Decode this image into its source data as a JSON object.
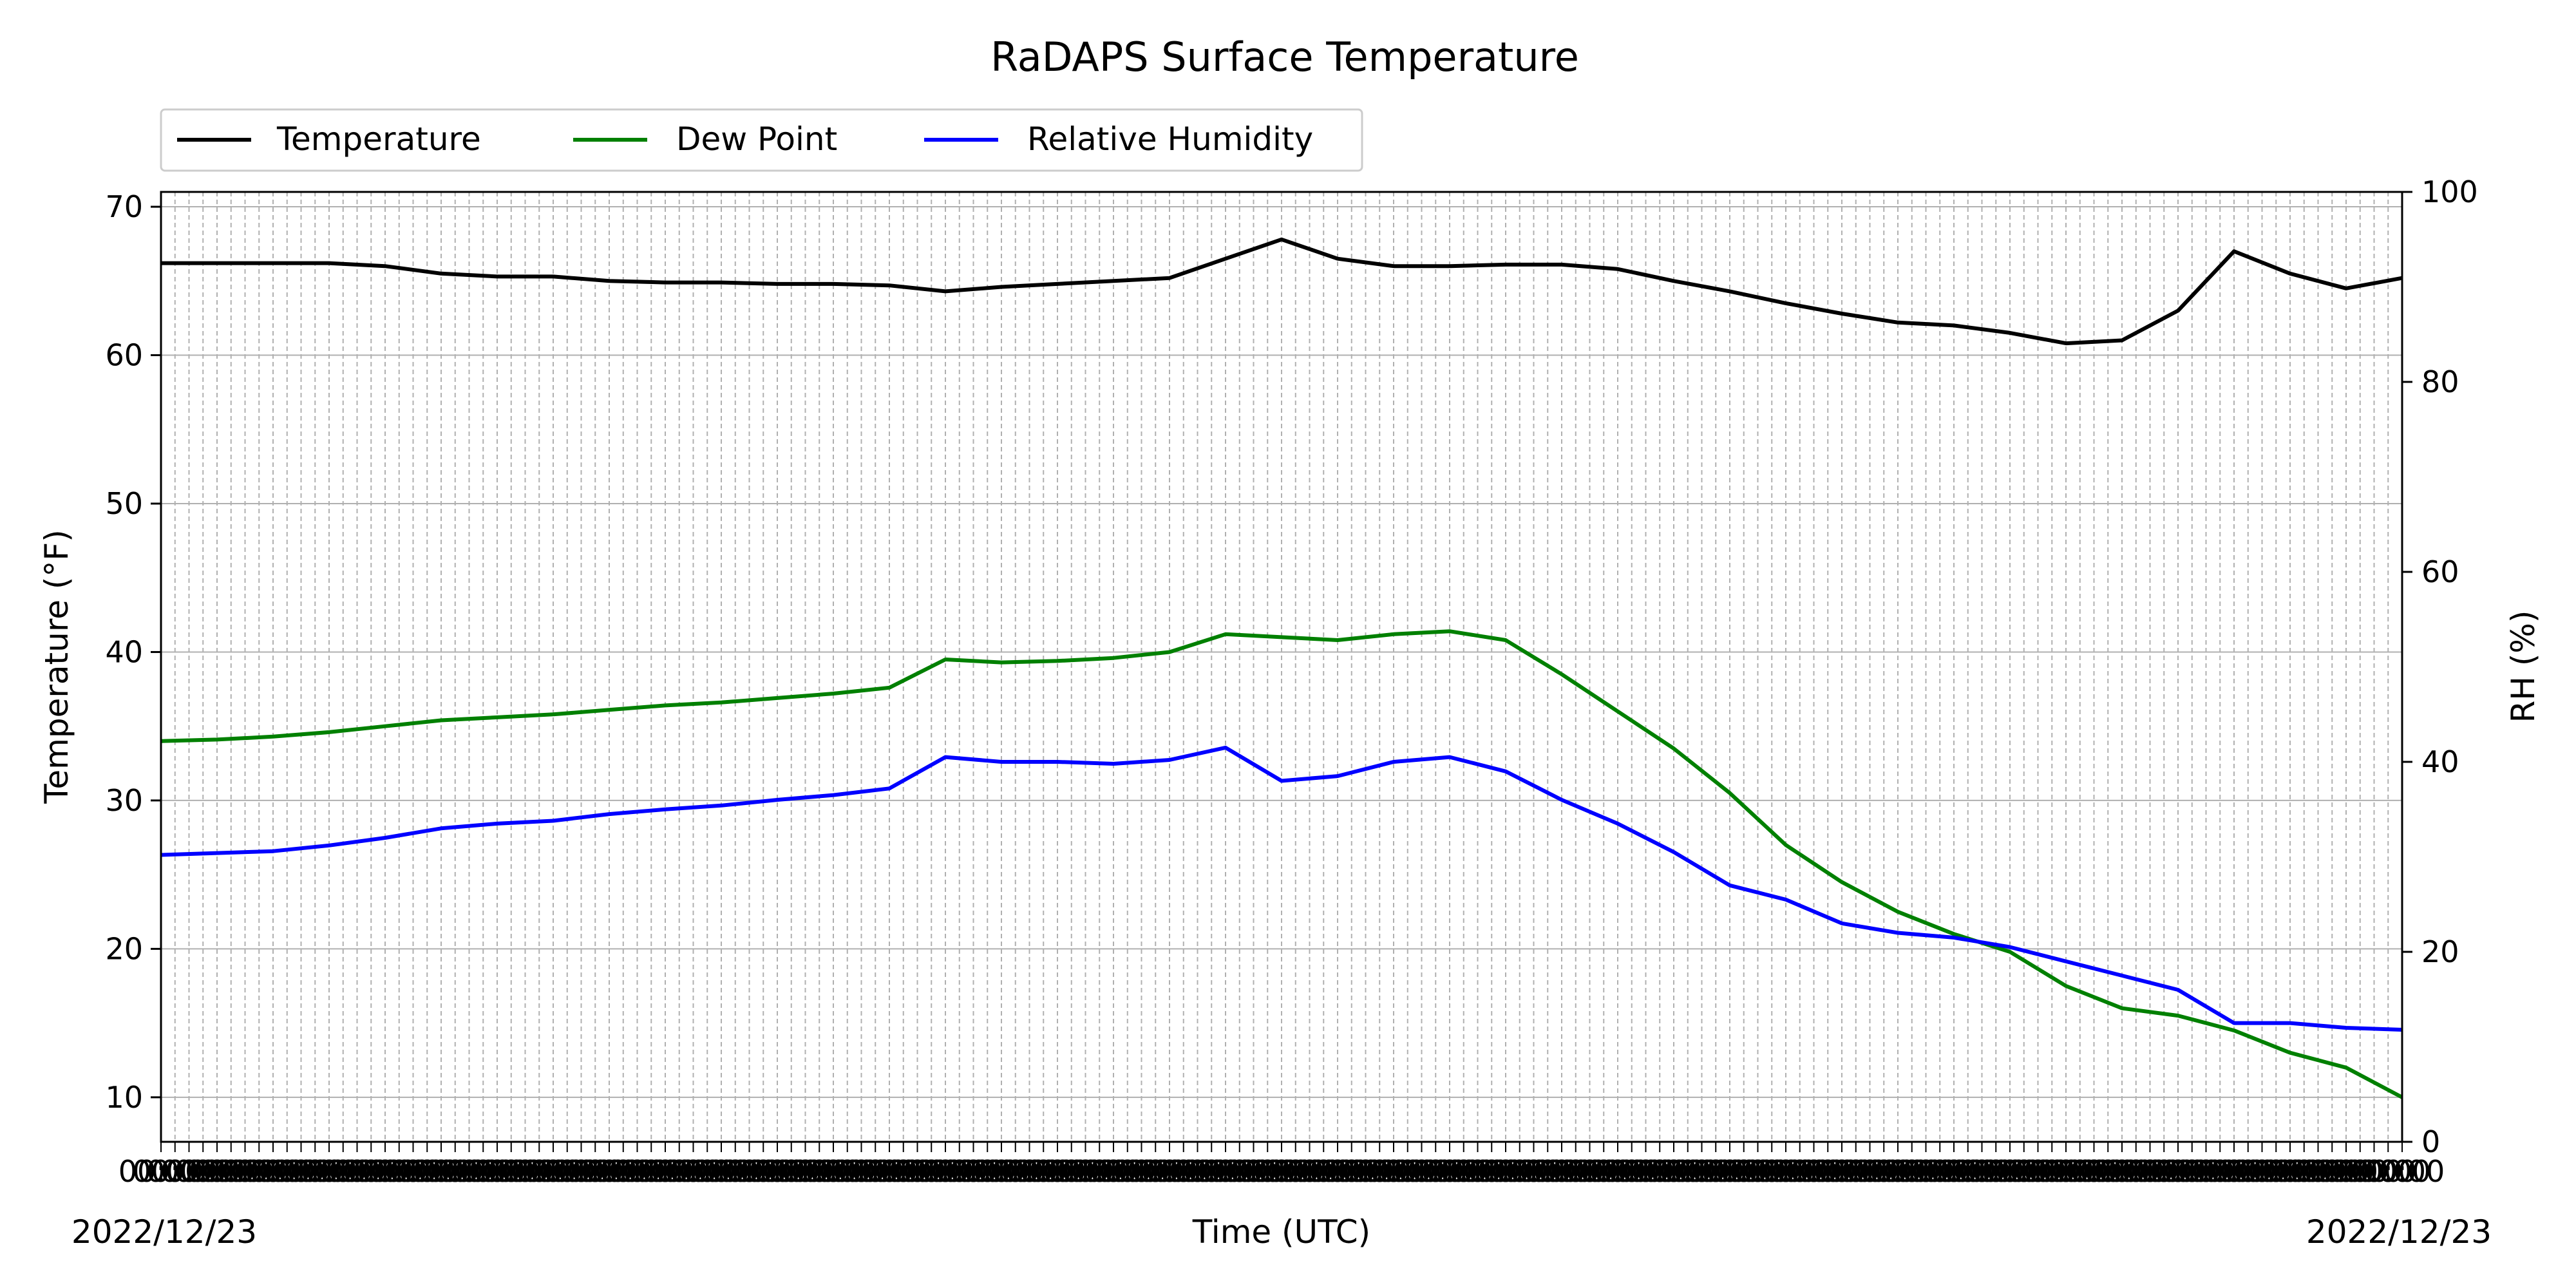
{
  "chart_data": {
    "type": "line",
    "title": "RaDAPS Surface Temperature",
    "xlabel": "Time (UTC)",
    "ylabel_left": "Temperature ($^\\circ$F)",
    "ylabel_left_display": "Temperature (°F)",
    "ylabel_right": "RH (%)",
    "date_left": "2022/12/23",
    "date_right": "2022/12/23",
    "ylim_left": [
      7,
      71
    ],
    "ylim_right": [
      0,
      100
    ],
    "yticks_left": [
      10,
      20,
      30,
      40,
      50,
      60,
      70
    ],
    "yticks_right": [
      0,
      20,
      40,
      60,
      80,
      100
    ],
    "x_tick_count": 160,
    "x_tick_label_sample": "00:00",
    "grid": true,
    "legend_location": "upper-left, above plot",
    "x": [
      0,
      4,
      8,
      12,
      16,
      20,
      24,
      28,
      32,
      36,
      40,
      44,
      48,
      52,
      56,
      60,
      64,
      68,
      72,
      76,
      80,
      84,
      88,
      92,
      96,
      100,
      104,
      108,
      112,
      116,
      120,
      124,
      128,
      132,
      136,
      140,
      144,
      148,
      152,
      156,
      160
    ],
    "series": [
      {
        "name": "Temperature",
        "color": "#000000",
        "axis": "left",
        "values": [
          66.2,
          66.2,
          66.2,
          66.2,
          66.0,
          65.5,
          65.3,
          65.3,
          65.0,
          64.9,
          64.9,
          64.8,
          64.8,
          64.7,
          64.3,
          64.6,
          64.8,
          65.0,
          65.2,
          66.5,
          67.8,
          66.5,
          66.0,
          66.0,
          66.1,
          66.1,
          65.8,
          65.0,
          64.3,
          63.5,
          62.8,
          62.2,
          62.0,
          61.5,
          60.8,
          61.0,
          63.0,
          67.0,
          65.5,
          64.5,
          65.2
        ]
      },
      {
        "name": "Dew Point",
        "color": "#008000",
        "axis": "left",
        "values": [
          34.0,
          34.1,
          34.3,
          34.6,
          35.0,
          35.4,
          35.6,
          35.8,
          36.1,
          36.4,
          36.6,
          36.9,
          37.2,
          37.6,
          39.5,
          39.3,
          39.4,
          39.6,
          40.0,
          41.2,
          41.0,
          40.8,
          41.2,
          41.4,
          40.8,
          38.5,
          36.0,
          33.5,
          30.5,
          27.0,
          24.5,
          22.5,
          21.0,
          19.8,
          17.5,
          16.0,
          15.5,
          14.5,
          13.0,
          12.0,
          10.0
        ]
      },
      {
        "name": "Relative Humidity",
        "color": "#0000ff",
        "axis": "right",
        "values": [
          30.2,
          30.4,
          30.6,
          31.2,
          32.0,
          33.0,
          33.5,
          33.8,
          34.5,
          35.0,
          35.4,
          36.0,
          36.5,
          37.2,
          40.5,
          40.0,
          40.0,
          39.8,
          40.2,
          41.5,
          38.0,
          38.5,
          40.0,
          40.5,
          39.0,
          36.0,
          33.5,
          30.5,
          27.0,
          25.5,
          23.0,
          22.0,
          21.5,
          20.5,
          19.0,
          17.5,
          16.0,
          12.5,
          12.5,
          12.0,
          11.8
        ]
      }
    ]
  }
}
